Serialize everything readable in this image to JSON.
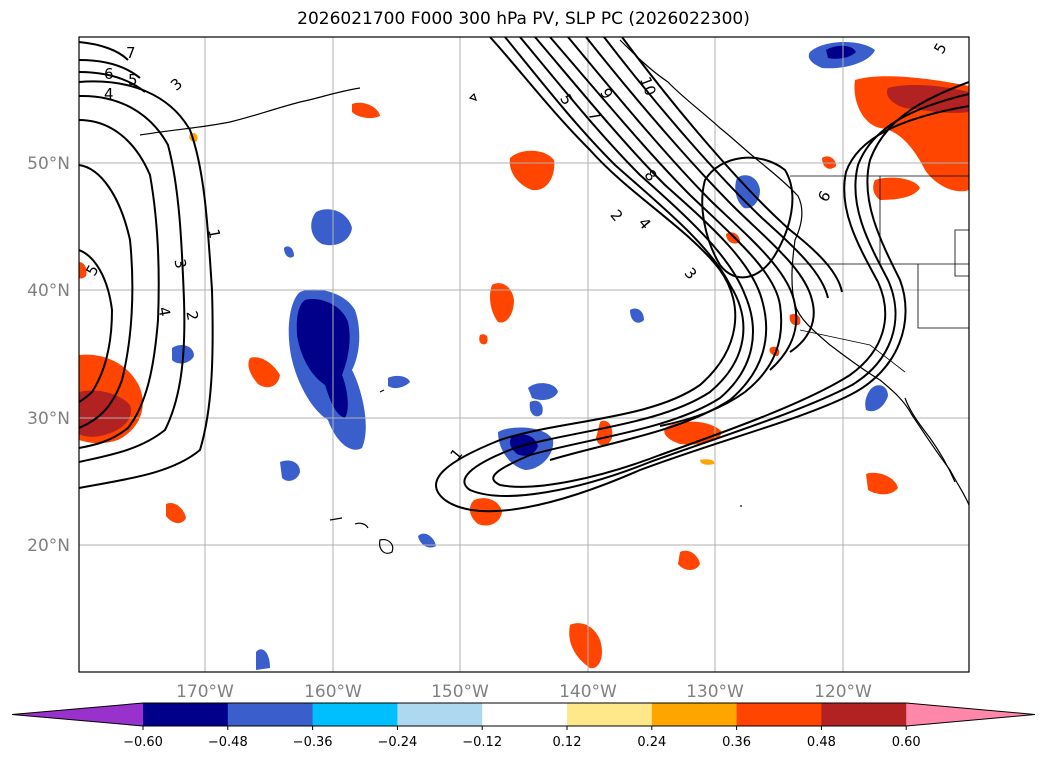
{
  "title": "2026021700 F000 300 hPa PV, SLP PC (2026022300)",
  "lat_labels": [
    "50°N",
    "40°N",
    "30°N",
    "20°N"
  ],
  "lon_labels": [
    "170°W",
    "160°W",
    "150°W",
    "140°W",
    "130°W",
    "120°W"
  ],
  "colorbar": {
    "ticks": [
      "−0.60",
      "−0.48",
      "−0.36",
      "−0.24",
      "−0.12",
      "0.12",
      "0.24",
      "0.36",
      "0.48",
      "0.60"
    ],
    "colors": [
      "#9932CC",
      "#00008B",
      "#3A5FCD",
      "#00BFFF",
      "#ADD8F0",
      "#FFFFFF",
      "#FFE88A",
      "#FFA500",
      "#FF4500",
      "#B22222",
      "#FF88AA"
    ]
  },
  "contour_labels": {
    "c1": "1",
    "c2": "2",
    "c3": "3",
    "c4": "4",
    "c5": "5",
    "c6": "6",
    "c7": "7",
    "c8": "8",
    "c9": "9",
    "c10": "10"
  }
}
